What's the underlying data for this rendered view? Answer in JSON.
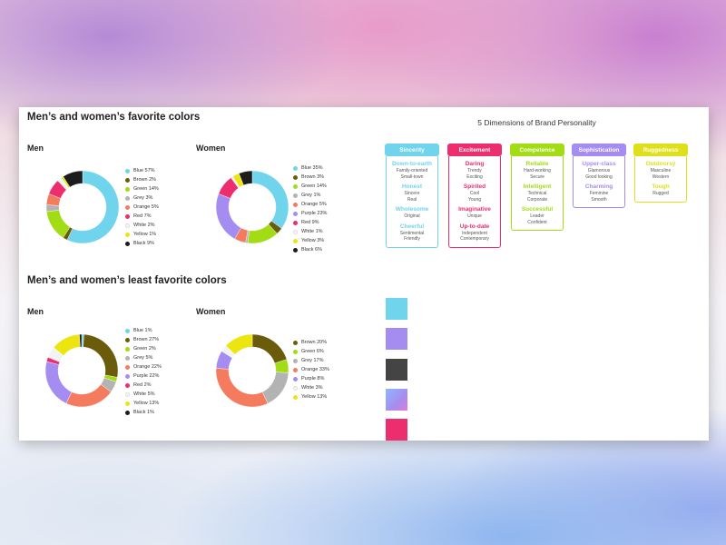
{
  "colors": {
    "Blue": "#6fd4ec",
    "Brown": "#6b5c0c",
    "Green": "#a2dc14",
    "Grey": "#b3b3b3",
    "Orange": "#f47b5e",
    "Purple": "#a58cf0",
    "Red": "#ec2d6e",
    "White": "#f3f3f3",
    "Yellow": "#ece510",
    "Black": "#1c1c1c"
  },
  "favorite": {
    "title": "Men’s and women’s favorite colors"
  },
  "least": {
    "title": "Men’s and women’s least favorite colors"
  },
  "chart_data": [
    {
      "type": "pie",
      "title": "Men",
      "group": "Men’s and women’s favorite colors",
      "slices": [
        {
          "label": "Blue",
          "value": 57,
          "display": "Blue 57%"
        },
        {
          "label": "Brown",
          "value": 2,
          "display": "Brown 2%"
        },
        {
          "label": "Green",
          "value": 14,
          "display": "Green 14%"
        },
        {
          "label": "Grey",
          "value": 3,
          "display": "Grey 3%"
        },
        {
          "label": "Orange",
          "value": 5,
          "display": "Orange 5%"
        },
        {
          "label": "Red",
          "value": 7,
          "display": "Red 7%"
        },
        {
          "label": "White",
          "value": 2,
          "display": "White 2%"
        },
        {
          "label": "Yellow",
          "value": 1,
          "display": "Yellow 1%"
        },
        {
          "label": "Black",
          "value": 9,
          "display": "Black 9%"
        }
      ]
    },
    {
      "type": "pie",
      "title": "Women",
      "group": "Men’s and women’s favorite colors",
      "slices": [
        {
          "label": "Blue",
          "value": 35,
          "display": "Blue 35%"
        },
        {
          "label": "Brown",
          "value": 3,
          "display": "Brown 3%"
        },
        {
          "label": "Green",
          "value": 14,
          "display": "Green 14%"
        },
        {
          "label": "Grey",
          "value": 1,
          "display": "Grey 1%"
        },
        {
          "label": "Orange",
          "value": 5,
          "display": "Orange 5%"
        },
        {
          "label": "Purple",
          "value": 23,
          "display": "Purple 23%"
        },
        {
          "label": "Red",
          "value": 9,
          "display": "Red 9%"
        },
        {
          "label": "White",
          "value": 1,
          "display": "White 1%"
        },
        {
          "label": "Yellow",
          "value": 3,
          "display": "Yellow 3%"
        },
        {
          "label": "Black",
          "value": 6,
          "display": "Black 6%"
        }
      ]
    },
    {
      "type": "pie",
      "title": "Men",
      "group": "Men’s and women’s least favorite colors",
      "slices": [
        {
          "label": "Blue",
          "value": 1,
          "display": "Blue 1%"
        },
        {
          "label": "Brown",
          "value": 27,
          "display": "Brown 27%"
        },
        {
          "label": "Green",
          "value": 2,
          "display": "Green 2%"
        },
        {
          "label": "Grey",
          "value": 5,
          "display": "Grey 5%"
        },
        {
          "label": "Orange",
          "value": 22,
          "display": "Orange 22%"
        },
        {
          "label": "Purple",
          "value": 22,
          "display": "Purple 22%"
        },
        {
          "label": "Red",
          "value": 2,
          "display": "Red 2%"
        },
        {
          "label": "White",
          "value": 5,
          "display": "White 5%"
        },
        {
          "label": "Yellow",
          "value": 13,
          "display": "Yellow 13%"
        },
        {
          "label": "Black",
          "value": 1,
          "display": "Black 1%"
        }
      ]
    },
    {
      "type": "pie",
      "title": "Women",
      "group": "Men’s and women’s least favorite colors",
      "slices": [
        {
          "label": "Brown",
          "value": 20,
          "display": "Brown 20%"
        },
        {
          "label": "Green",
          "value": 6,
          "display": "Green 6%"
        },
        {
          "label": "Grey",
          "value": 17,
          "display": "Grey 17%"
        },
        {
          "label": "Orange",
          "value": 33,
          "display": "Orange 33%"
        },
        {
          "label": "Purple",
          "value": 8,
          "display": "Purple 8%"
        },
        {
          "label": "White",
          "value": 3,
          "display": "White 3%"
        },
        {
          "label": "Yellow",
          "value": 13,
          "display": "Yellow 13%"
        }
      ]
    }
  ],
  "brand": {
    "title": "5 Dimensions of Brand Personality",
    "dimensions": [
      {
        "name": "Sincerity",
        "color": "#6fd4ec",
        "traits": [
          {
            "name": "Down-to-earth",
            "desc": [
              "Family-oriented",
              "Small-town"
            ]
          },
          {
            "name": "Honest",
            "desc": [
              "Sincere",
              "Real"
            ]
          },
          {
            "name": "Wholesome",
            "desc": [
              "Original"
            ]
          },
          {
            "name": "Cheerful",
            "desc": [
              "Sentimental",
              "Friendly"
            ]
          }
        ]
      },
      {
        "name": "Excitement",
        "color": "#ec2d6e",
        "traits": [
          {
            "name": "Daring",
            "desc": [
              "Trendy",
              "Exciting"
            ]
          },
          {
            "name": "Spirited",
            "desc": [
              "Cool",
              "Young"
            ]
          },
          {
            "name": "Imaginative",
            "desc": [
              "Unique"
            ]
          },
          {
            "name": "Up-to-date",
            "desc": [
              "Independent",
              "Contemporary"
            ]
          }
        ]
      },
      {
        "name": "Competence",
        "color": "#a2dc14",
        "traits": [
          {
            "name": "Reliable",
            "desc": [
              "Hard-working",
              "Secure"
            ]
          },
          {
            "name": "Intelligent",
            "desc": [
              "Technical",
              "Corporate"
            ]
          },
          {
            "name": "Successful",
            "desc": [
              "Leader",
              "Confident"
            ]
          }
        ]
      },
      {
        "name": "Sophistication",
        "color": "#a58cf0",
        "traits": [
          {
            "name": "Upper-class",
            "desc": [
              "Glamorous",
              "Good looking"
            ]
          },
          {
            "name": "Charming",
            "desc": [
              "Feminine",
              "Smooth"
            ]
          }
        ]
      },
      {
        "name": "Ruggedness",
        "color": "#dfe01a",
        "traits": [
          {
            "name": "Outdoorsy",
            "desc": [
              "Masculine",
              "Western"
            ]
          },
          {
            "name": "Tough",
            "desc": [
              "Rugged"
            ]
          }
        ]
      }
    ]
  },
  "swatches": [
    {
      "name": "blue",
      "fill": "#6fd4ec"
    },
    {
      "name": "purple",
      "fill": "#a58cf0"
    },
    {
      "name": "dark-grey",
      "fill": "#444444"
    },
    {
      "name": "gradient",
      "fill": "linear-gradient(135deg,#8fb6ff 0%,#a58cf0 60%,#e07ad8 100%)"
    },
    {
      "name": "pink",
      "fill": "#ec2d6e"
    }
  ]
}
